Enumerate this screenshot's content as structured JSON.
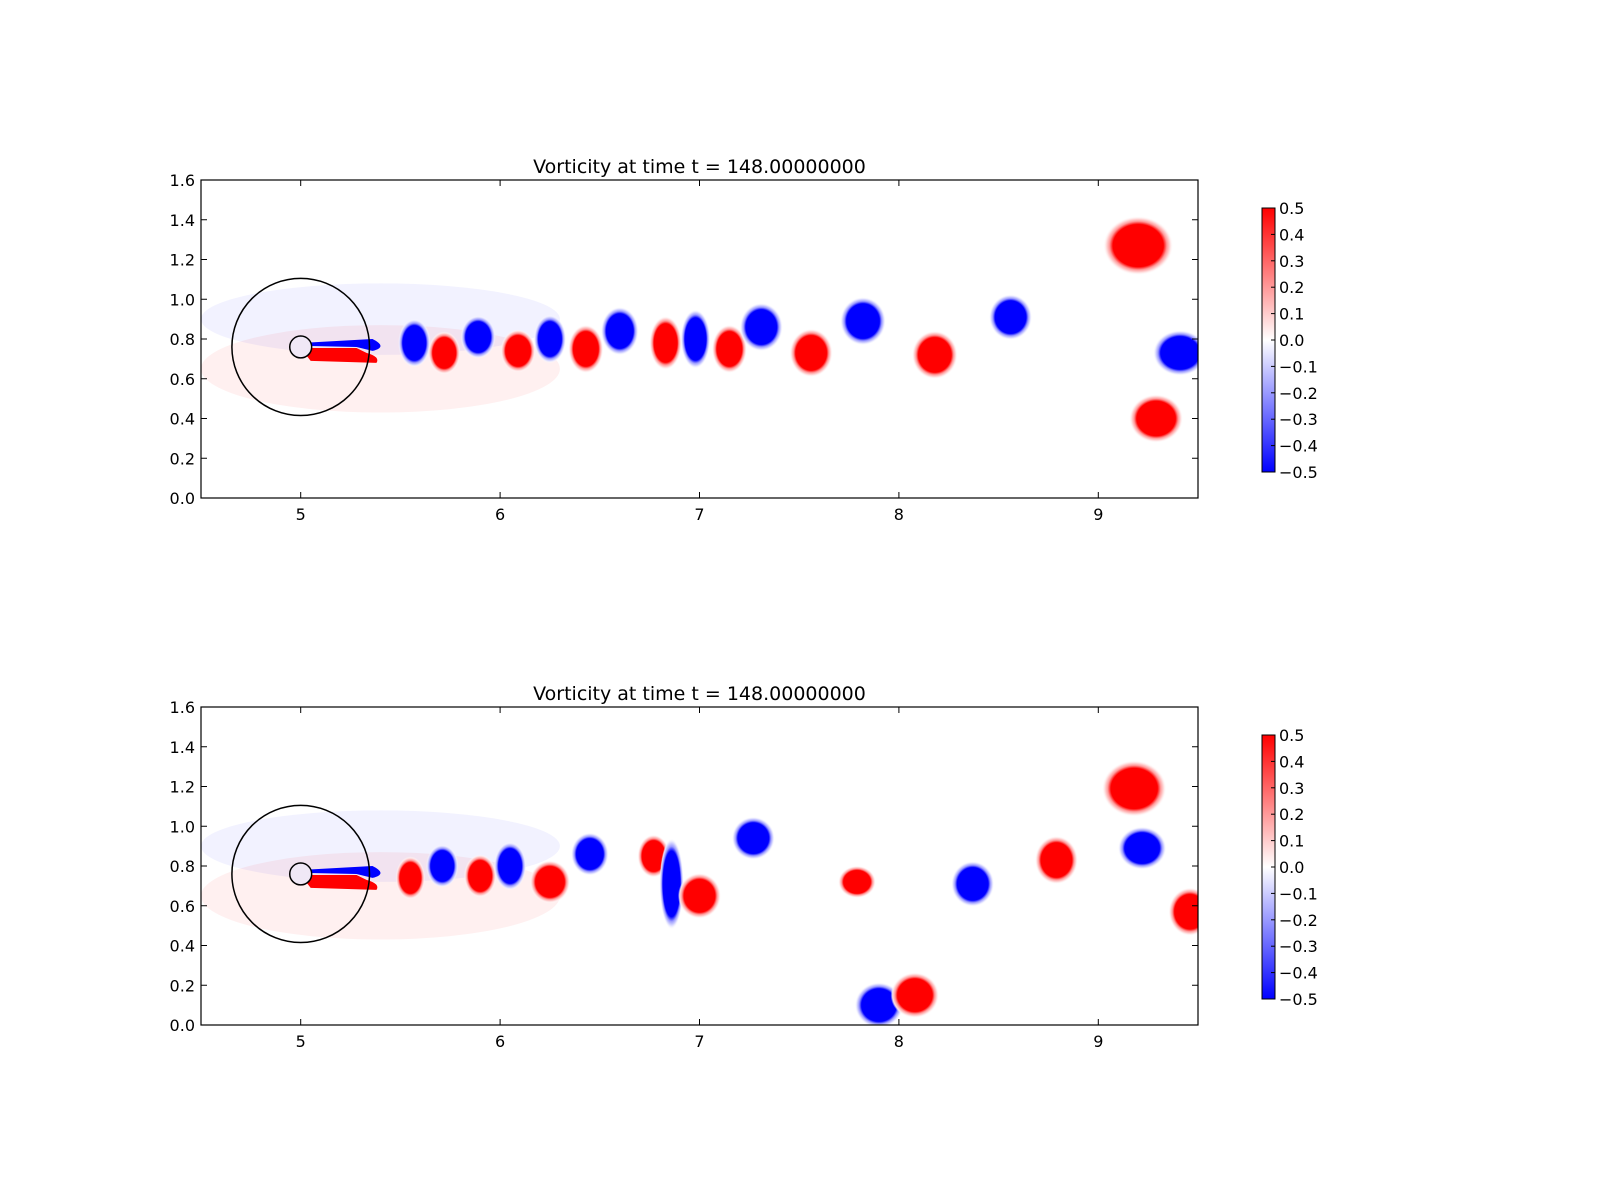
{
  "chart_data": [
    {
      "type": "heatmap",
      "title": "Vorticity at time t =   148.00000000",
      "xlabel": "",
      "ylabel": "",
      "xlim": [
        4.5,
        9.5
      ],
      "ylim": [
        0.0,
        1.6
      ],
      "x_ticks": [
        "5",
        "6",
        "7",
        "8",
        "9"
      ],
      "x_tick_values": [
        5,
        6,
        7,
        8,
        9
      ],
      "y_ticks": [
        "0.0",
        "0.2",
        "0.4",
        "0.6",
        "0.8",
        "1.0",
        "1.2",
        "1.4",
        "1.6"
      ],
      "y_tick_values": [
        0.0,
        0.2,
        0.4,
        0.6,
        0.8,
        1.0,
        1.2,
        1.4,
        1.6
      ],
      "colorbar": {
        "range": [
          -0.5,
          0.5
        ],
        "ticks": [
          "0.5",
          "0.4",
          "0.3",
          "0.2",
          "0.1",
          "0.0",
          "−0.1",
          "−0.2",
          "−0.3",
          "−0.4",
          "−0.5"
        ],
        "tick_values": [
          0.5,
          0.4,
          0.3,
          0.2,
          0.1,
          0.0,
          -0.1,
          -0.2,
          -0.3,
          -0.4,
          -0.5
        ],
        "colormap": "bwr",
        "color_positive": "#ff0000",
        "color_negative": "#0000ff"
      },
      "cylinder": {
        "center": [
          5.0,
          0.76
        ],
        "radius": 0.055
      },
      "outer_circle": {
        "center": [
          5.0,
          0.76
        ],
        "radius": 0.345
      },
      "vortices": [
        {
          "x": 5.57,
          "y": 0.78,
          "sign": -1,
          "rx": 0.06,
          "ry": 0.09
        },
        {
          "x": 5.72,
          "y": 0.73,
          "sign": 1,
          "rx": 0.06,
          "ry": 0.08
        },
        {
          "x": 5.89,
          "y": 0.81,
          "sign": -1,
          "rx": 0.065,
          "ry": 0.08
        },
        {
          "x": 6.09,
          "y": 0.74,
          "sign": 1,
          "rx": 0.065,
          "ry": 0.08
        },
        {
          "x": 6.25,
          "y": 0.8,
          "sign": -1,
          "rx": 0.06,
          "ry": 0.09
        },
        {
          "x": 6.43,
          "y": 0.75,
          "sign": 1,
          "rx": 0.065,
          "ry": 0.09
        },
        {
          "x": 6.6,
          "y": 0.84,
          "sign": -1,
          "rx": 0.07,
          "ry": 0.09
        },
        {
          "x": 6.83,
          "y": 0.78,
          "sign": 1,
          "rx": 0.06,
          "ry": 0.1
        },
        {
          "x": 6.98,
          "y": 0.8,
          "sign": -1,
          "rx": 0.055,
          "ry": 0.11
        },
        {
          "x": 7.15,
          "y": 0.75,
          "sign": 1,
          "rx": 0.065,
          "ry": 0.09
        },
        {
          "x": 7.31,
          "y": 0.86,
          "sign": -1,
          "rx": 0.08,
          "ry": 0.09
        },
        {
          "x": 7.56,
          "y": 0.73,
          "sign": 1,
          "rx": 0.08,
          "ry": 0.09
        },
        {
          "x": 7.82,
          "y": 0.89,
          "sign": -1,
          "rx": 0.085,
          "ry": 0.09
        },
        {
          "x": 8.18,
          "y": 0.72,
          "sign": 1,
          "rx": 0.085,
          "ry": 0.09
        },
        {
          "x": 8.56,
          "y": 0.91,
          "sign": -1,
          "rx": 0.08,
          "ry": 0.085
        },
        {
          "x": 9.2,
          "y": 1.27,
          "sign": 1,
          "rx": 0.13,
          "ry": 0.11
        },
        {
          "x": 9.41,
          "y": 0.73,
          "sign": -1,
          "rx": 0.1,
          "ry": 0.085
        },
        {
          "x": 9.29,
          "y": 0.4,
          "sign": 1,
          "rx": 0.1,
          "ry": 0.09
        }
      ]
    },
    {
      "type": "heatmap",
      "title": "Vorticity at time t =   148.00000000",
      "xlabel": "",
      "ylabel": "",
      "xlim": [
        4.5,
        9.5
      ],
      "ylim": [
        0.0,
        1.6
      ],
      "x_ticks": [
        "5",
        "6",
        "7",
        "8",
        "9"
      ],
      "x_tick_values": [
        5,
        6,
        7,
        8,
        9
      ],
      "y_ticks": [
        "0.0",
        "0.2",
        "0.4",
        "0.6",
        "0.8",
        "1.0",
        "1.2",
        "1.4",
        "1.6"
      ],
      "y_tick_values": [
        0.0,
        0.2,
        0.4,
        0.6,
        0.8,
        1.0,
        1.2,
        1.4,
        1.6
      ],
      "colorbar": {
        "range": [
          -0.5,
          0.5
        ],
        "ticks": [
          "0.5",
          "0.4",
          "0.3",
          "0.2",
          "0.1",
          "0.0",
          "−0.1",
          "−0.2",
          "−0.3",
          "−0.4",
          "−0.5"
        ],
        "tick_values": [
          0.5,
          0.4,
          0.3,
          0.2,
          0.1,
          0.0,
          -0.1,
          -0.2,
          -0.3,
          -0.4,
          -0.5
        ],
        "colormap": "bwr",
        "color_positive": "#ff0000",
        "color_negative": "#0000ff"
      },
      "cylinder": {
        "center": [
          5.0,
          0.76
        ],
        "radius": 0.055
      },
      "outer_circle": {
        "center": [
          5.0,
          0.76
        ],
        "radius": 0.345
      },
      "vortices": [
        {
          "x": 5.55,
          "y": 0.74,
          "sign": 1,
          "rx": 0.055,
          "ry": 0.08
        },
        {
          "x": 5.71,
          "y": 0.8,
          "sign": -1,
          "rx": 0.06,
          "ry": 0.08
        },
        {
          "x": 5.9,
          "y": 0.75,
          "sign": 1,
          "rx": 0.06,
          "ry": 0.08
        },
        {
          "x": 6.05,
          "y": 0.8,
          "sign": -1,
          "rx": 0.06,
          "ry": 0.09
        },
        {
          "x": 6.25,
          "y": 0.72,
          "sign": 1,
          "rx": 0.075,
          "ry": 0.08
        },
        {
          "x": 6.45,
          "y": 0.86,
          "sign": -1,
          "rx": 0.07,
          "ry": 0.08
        },
        {
          "x": 6.77,
          "y": 0.85,
          "sign": 1,
          "rx": 0.06,
          "ry": 0.08
        },
        {
          "x": 6.86,
          "y": 0.71,
          "sign": -1,
          "rx": 0.045,
          "ry": 0.17
        },
        {
          "x": 7.0,
          "y": 0.65,
          "sign": 1,
          "rx": 0.08,
          "ry": 0.085
        },
        {
          "x": 7.27,
          "y": 0.94,
          "sign": -1,
          "rx": 0.08,
          "ry": 0.08
        },
        {
          "x": 7.79,
          "y": 0.72,
          "sign": 1,
          "rx": 0.07,
          "ry": 0.06
        },
        {
          "x": 7.9,
          "y": 0.1,
          "sign": -1,
          "rx": 0.09,
          "ry": 0.085
        },
        {
          "x": 8.08,
          "y": 0.15,
          "sign": 1,
          "rx": 0.09,
          "ry": 0.085
        },
        {
          "x": 8.37,
          "y": 0.71,
          "sign": -1,
          "rx": 0.08,
          "ry": 0.085
        },
        {
          "x": 8.79,
          "y": 0.83,
          "sign": 1,
          "rx": 0.08,
          "ry": 0.09
        },
        {
          "x": 9.18,
          "y": 1.19,
          "sign": 1,
          "rx": 0.12,
          "ry": 0.105
        },
        {
          "x": 9.22,
          "y": 0.89,
          "sign": -1,
          "rx": 0.09,
          "ry": 0.08
        },
        {
          "x": 9.46,
          "y": 0.57,
          "sign": 1,
          "rx": 0.08,
          "ry": 0.09
        }
      ]
    }
  ]
}
